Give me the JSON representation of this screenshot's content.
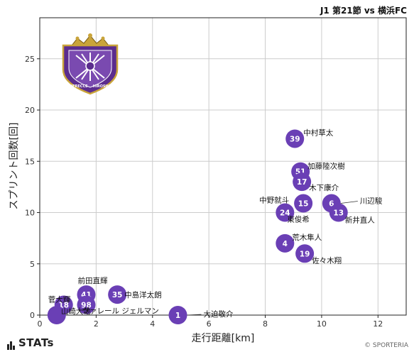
{
  "header": {
    "title": "J1 第21節 vs 横浜FC"
  },
  "footer": {
    "stats_logo": "STATs",
    "credit": "© SPORTERIA"
  },
  "emblem": {
    "top_text": "SANFRECCE",
    "bottom_text": "HIROSHIMA",
    "purple": "#5b2d8e",
    "gold": "#c9a43a"
  },
  "chart_data": {
    "type": "scatter",
    "xlabel": "走行距離[km]",
    "ylabel": "スプリント回数[回]",
    "xlim": [
      0,
      13
    ],
    "ylim": [
      0,
      29
    ],
    "xticks": [
      0,
      2,
      4,
      6,
      8,
      10,
      12
    ],
    "yticks": [
      0,
      5,
      10,
      15,
      20,
      25
    ],
    "grid": true,
    "marker_color": "#6a3fb5",
    "points": [
      {
        "num": "39",
        "name": "中村草太",
        "x": 9.05,
        "y": 17.2
      },
      {
        "num": "51",
        "name": "加藤陸次樹",
        "x": 9.25,
        "y": 14.0
      },
      {
        "num": "17",
        "name": "木下康介",
        "x": 9.3,
        "y": 13.0
      },
      {
        "num": "15",
        "name": "中野就斗",
        "x": 9.35,
        "y": 10.9
      },
      {
        "num": "6",
        "name": "川辺駿",
        "x": 10.35,
        "y": 10.9
      },
      {
        "num": "24",
        "name": "東俊希",
        "x": 8.7,
        "y": 10.0
      },
      {
        "num": "13",
        "name": "新井直人",
        "x": 10.6,
        "y": 10.0
      },
      {
        "num": "4",
        "name": "荒木隼人",
        "x": 8.7,
        "y": 7.0
      },
      {
        "num": "19",
        "name": "佐々木翔",
        "x": 9.4,
        "y": 6.0
      },
      {
        "num": "41",
        "name": "前田直輝",
        "x": 1.65,
        "y": 2.0
      },
      {
        "num": "35",
        "name": "中島洋太朗",
        "x": 2.75,
        "y": 2.0
      },
      {
        "num": "18",
        "name": "菅大輝",
        "x": 0.85,
        "y": 1.0
      },
      {
        "num": "98",
        "name": "ヴァレール ジェルマン",
        "x": 1.65,
        "y": 1.0
      },
      {
        "num": "1",
        "name": "大迫敬介",
        "x": 4.9,
        "y": 0.0
      },
      {
        "num": "",
        "name": "山崎大地",
        "x": 0.6,
        "y": 0.0
      }
    ]
  }
}
